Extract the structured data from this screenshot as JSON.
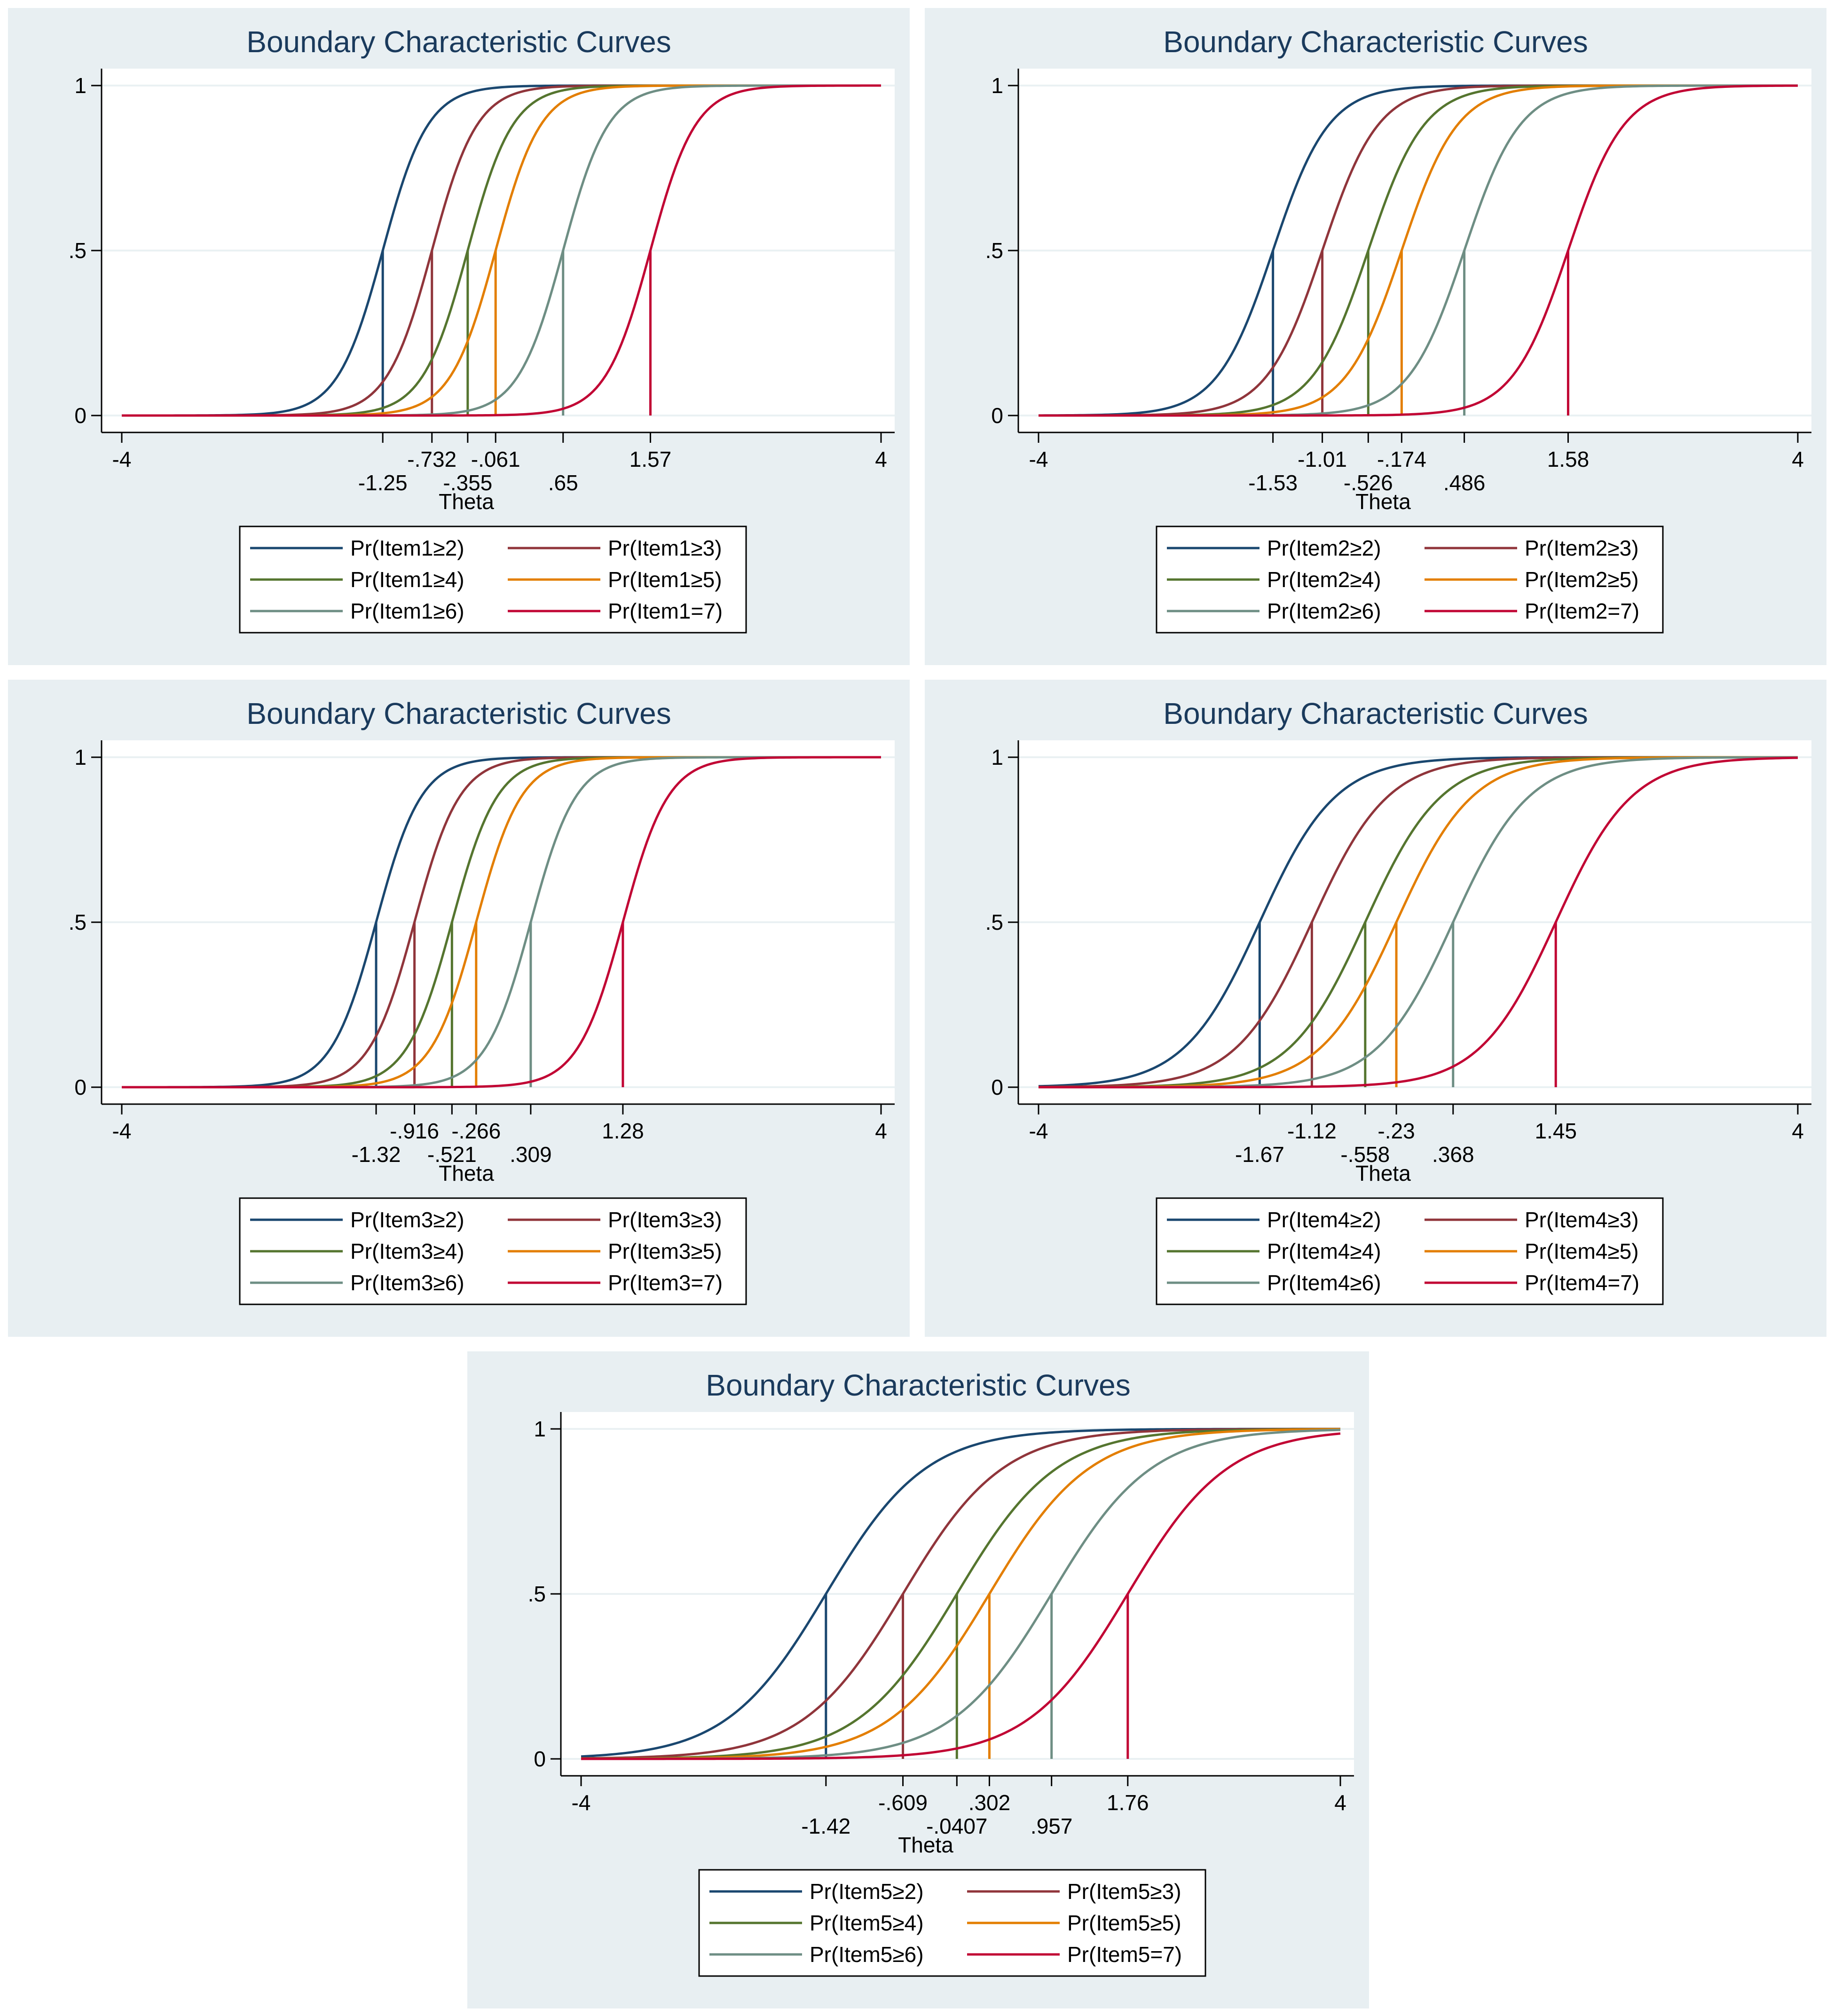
{
  "colors": {
    "ge2": "#1a476f",
    "ge3": "#90353b",
    "ge4": "#55752f",
    "ge5": "#e37e00",
    "ge6": "#6e8e84",
    "eq7": "#c10534"
  },
  "chart_data": [
    {
      "type": "line",
      "title": "Boundary Characteristic Curves",
      "xlabel": "Theta",
      "ylabel": "",
      "xlim": [
        -4,
        4
      ],
      "ylim": [
        0,
        1
      ],
      "yticks": [
        {
          "value": 0,
          "label": "0"
        },
        {
          "value": 0.5,
          "label": ".5"
        },
        {
          "value": 1,
          "label": "1"
        }
      ],
      "xticks": [
        {
          "value": -4,
          "label": "-4"
        },
        {
          "value": 4,
          "label": "4"
        }
      ],
      "slope": 4.2,
      "series": [
        {
          "name": "Pr(Item1≥2)",
          "color_key": "ge2",
          "threshold": -1.25,
          "threshold_label": "-1.25",
          "label_row": 2
        },
        {
          "name": "Pr(Item1≥3)",
          "color_key": "ge3",
          "threshold": -0.732,
          "threshold_label": "-.732",
          "label_row": 1
        },
        {
          "name": "Pr(Item1≥4)",
          "color_key": "ge4",
          "threshold": -0.355,
          "threshold_label": "-.355",
          "label_row": 2
        },
        {
          "name": "Pr(Item1≥5)",
          "color_key": "ge5",
          "threshold": -0.061,
          "threshold_label": "-.061",
          "label_row": 1
        },
        {
          "name": "Pr(Item1≥6)",
          "color_key": "ge6",
          "threshold": 0.65,
          "threshold_label": ".65",
          "label_row": 2
        },
        {
          "name": "Pr(Item1=7)",
          "color_key": "eq7",
          "threshold": 1.57,
          "threshold_label": "1.57",
          "label_row": 1
        }
      ]
    },
    {
      "type": "line",
      "title": "Boundary Characteristic Curves",
      "xlabel": "Theta",
      "ylabel": "",
      "xlim": [
        -4,
        4
      ],
      "ylim": [
        0,
        1
      ],
      "yticks": [
        {
          "value": 0,
          "label": "0"
        },
        {
          "value": 0.5,
          "label": ".5"
        },
        {
          "value": 1,
          "label": "1"
        }
      ],
      "xticks": [
        {
          "value": -4,
          "label": "-4"
        },
        {
          "value": 4,
          "label": "4"
        }
      ],
      "slope": 3.4,
      "series": [
        {
          "name": "Pr(Item2≥2)",
          "color_key": "ge2",
          "threshold": -1.53,
          "threshold_label": "-1.53",
          "label_row": 2
        },
        {
          "name": "Pr(Item2≥3)",
          "color_key": "ge3",
          "threshold": -1.01,
          "threshold_label": "-1.01",
          "label_row": 1
        },
        {
          "name": "Pr(Item2≥4)",
          "color_key": "ge4",
          "threshold": -0.526,
          "threshold_label": "-.526",
          "label_row": 2
        },
        {
          "name": "Pr(Item2≥5)",
          "color_key": "ge5",
          "threshold": -0.174,
          "threshold_label": "-.174",
          "label_row": 1
        },
        {
          "name": "Pr(Item2≥6)",
          "color_key": "ge6",
          "threshold": 0.486,
          "threshold_label": ".486",
          "label_row": 2
        },
        {
          "name": "Pr(Item2=7)",
          "color_key": "eq7",
          "threshold": 1.58,
          "threshold_label": "1.58",
          "label_row": 1
        }
      ]
    },
    {
      "type": "line",
      "title": "Boundary Characteristic Curves",
      "xlabel": "Theta",
      "ylabel": "",
      "xlim": [
        -4,
        4
      ],
      "ylim": [
        0,
        1
      ],
      "yticks": [
        {
          "value": 0,
          "label": "0"
        },
        {
          "value": 0.5,
          "label": ".5"
        },
        {
          "value": 1,
          "label": "1"
        }
      ],
      "xticks": [
        {
          "value": -4,
          "label": "-4"
        },
        {
          "value": 4,
          "label": "4"
        }
      ],
      "slope": 4.2,
      "series": [
        {
          "name": "Pr(Item3≥2)",
          "color_key": "ge2",
          "threshold": -1.32,
          "threshold_label": "-1.32",
          "label_row": 2
        },
        {
          "name": "Pr(Item3≥3)",
          "color_key": "ge3",
          "threshold": -0.916,
          "threshold_label": "-.916",
          "label_row": 1
        },
        {
          "name": "Pr(Item3≥4)",
          "color_key": "ge4",
          "threshold": -0.521,
          "threshold_label": "-.521",
          "label_row": 2
        },
        {
          "name": "Pr(Item3≥5)",
          "color_key": "ge5",
          "threshold": -0.266,
          "threshold_label": "-.266",
          "label_row": 1
        },
        {
          "name": "Pr(Item3≥6)",
          "color_key": "ge6",
          "threshold": 0.309,
          "threshold_label": ".309",
          "label_row": 2
        },
        {
          "name": "Pr(Item3=7)",
          "color_key": "eq7",
          "threshold": 1.28,
          "threshold_label": "1.28",
          "label_row": 1
        }
      ]
    },
    {
      "type": "line",
      "title": "Boundary Characteristic Curves",
      "xlabel": "Theta",
      "ylabel": "",
      "xlim": [
        -4,
        4
      ],
      "ylim": [
        0,
        1
      ],
      "yticks": [
        {
          "value": 0,
          "label": "0"
        },
        {
          "value": 0.5,
          "label": ".5"
        },
        {
          "value": 1,
          "label": "1"
        }
      ],
      "xticks": [
        {
          "value": -4,
          "label": "-4"
        },
        {
          "value": 4,
          "label": "4"
        }
      ],
      "slope": 2.5,
      "series": [
        {
          "name": "Pr(Item4≥2)",
          "color_key": "ge2",
          "threshold": -1.67,
          "threshold_label": "-1.67",
          "label_row": 2
        },
        {
          "name": "Pr(Item4≥3)",
          "color_key": "ge3",
          "threshold": -1.12,
          "threshold_label": "-1.12",
          "label_row": 1
        },
        {
          "name": "Pr(Item4≥4)",
          "color_key": "ge4",
          "threshold": -0.558,
          "threshold_label": "-.558",
          "label_row": 2
        },
        {
          "name": "Pr(Item4≥5)",
          "color_key": "ge5",
          "threshold": -0.23,
          "threshold_label": "-.23",
          "label_row": 1
        },
        {
          "name": "Pr(Item4≥6)",
          "color_key": "ge6",
          "threshold": 0.368,
          "threshold_label": ".368",
          "label_row": 2
        },
        {
          "name": "Pr(Item4=7)",
          "color_key": "eq7",
          "threshold": 1.45,
          "threshold_label": "1.45",
          "label_row": 1
        }
      ]
    },
    {
      "type": "line",
      "title": "Boundary Characteristic Curves",
      "xlabel": "Theta",
      "ylabel": "",
      "xlim": [
        -4,
        4
      ],
      "ylim": [
        0,
        1
      ],
      "yticks": [
        {
          "value": 0,
          "label": "0"
        },
        {
          "value": 0.5,
          "label": ".5"
        },
        {
          "value": 1,
          "label": "1"
        }
      ],
      "xticks": [
        {
          "value": -4,
          "label": "-4"
        },
        {
          "value": 4,
          "label": "4"
        }
      ],
      "slope": 1.9,
      "series": [
        {
          "name": "Pr(Item5≥2)",
          "color_key": "ge2",
          "threshold": -1.42,
          "threshold_label": "-1.42",
          "label_row": 2
        },
        {
          "name": "Pr(Item5≥3)",
          "color_key": "ge3",
          "threshold": -0.609,
          "threshold_label": "-.609",
          "label_row": 1
        },
        {
          "name": "Pr(Item5≥4)",
          "color_key": "ge4",
          "threshold": -0.0407,
          "threshold_label": "-.0407",
          "label_row": 2
        },
        {
          "name": "Pr(Item5≥5)",
          "color_key": "ge5",
          "threshold": 0.302,
          "threshold_label": ".302",
          "label_row": 1
        },
        {
          "name": "Pr(Item5≥6)",
          "color_key": "ge6",
          "threshold": 0.957,
          "threshold_label": ".957",
          "label_row": 2
        },
        {
          "name": "Pr(Item5=7)",
          "color_key": "eq7",
          "threshold": 1.76,
          "threshold_label": "1.76",
          "label_row": 1
        }
      ]
    }
  ]
}
